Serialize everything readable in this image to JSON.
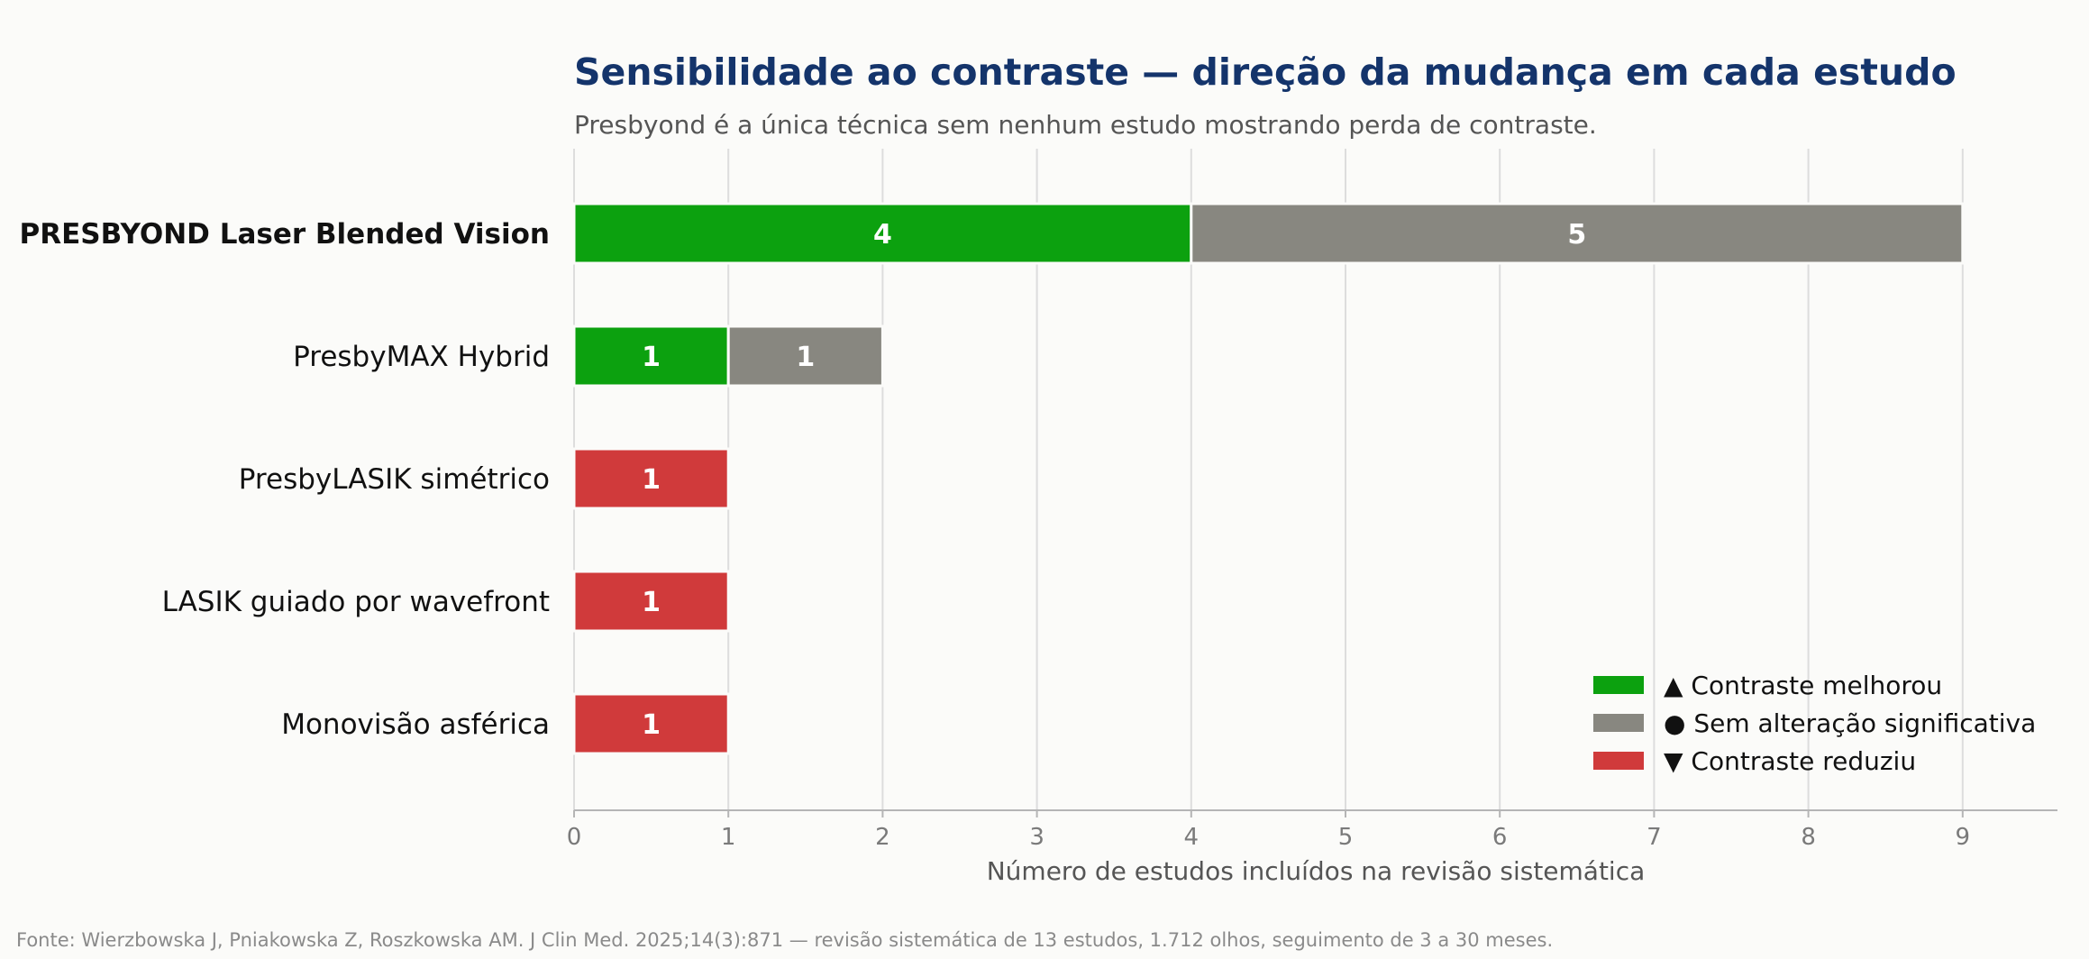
{
  "chart_data": {
    "type": "bar",
    "orientation": "horizontal",
    "stacked": true,
    "title": "Sensibilidade ao contraste — direção da mudança em cada estudo",
    "subtitle": "Presbyond é a única técnica sem nenhum estudo mostrando perda de contraste.",
    "xlabel": "Número de estudos incluídos na revisão sistemática",
    "ylabel": "",
    "xlim": [
      0,
      9.6
    ],
    "xticks": [
      0,
      1,
      2,
      3,
      4,
      5,
      6,
      7,
      8,
      9
    ],
    "grid": "vertical",
    "legend_position": "bottom-right",
    "categories": [
      "PRESBYOND Laser Blended Vision",
      "PresbyMAX Hybrid",
      "PresbyLASIK simétrico",
      "LASIK guiado por wavefront",
      "Monovisão asférica"
    ],
    "highlighted_category": "PRESBYOND Laser Blended Vision",
    "series": [
      {
        "name": "▲ Contraste melhorou",
        "color": "#0ca10f",
        "values": [
          4,
          1,
          0,
          0,
          0
        ]
      },
      {
        "name": "● Sem alteração significativa",
        "color": "#888780",
        "values": [
          5,
          1,
          0,
          0,
          0
        ]
      },
      {
        "name": "▼ Contraste reduziu",
        "color": "#d03a3b",
        "values": [
          0,
          0,
          1,
          1,
          1
        ]
      }
    ]
  },
  "source": "Fonte: Wierzbowska J, Pniakowska Z, Roszkowska AM. J Clin Med. 2025;14(3):871 — revisão sistemática de 13 estudos, 1.712 olhos, seguimento de 3 a 30 meses.",
  "colors": {
    "title": "#14346b",
    "background": "#fbfbf9",
    "grid": "#dddddd"
  }
}
